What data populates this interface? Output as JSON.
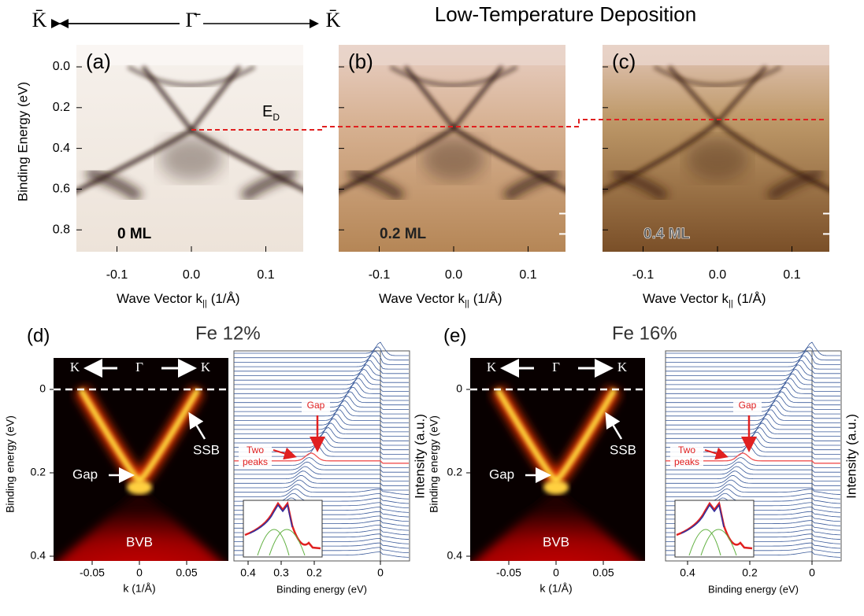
{
  "header": {
    "k_left": "K̄",
    "gamma": "Γ̄",
    "k_right": "K̄",
    "title": "Low-Temperature Deposition"
  },
  "top": {
    "y_label": "Binding Energy (eV)",
    "y_ticks": [
      "0.0",
      "0.2",
      "0.4",
      "0.6",
      "0.8"
    ],
    "x_ticks": [
      "-0.1",
      "0.0",
      "0.1"
    ],
    "x_label": "Wave Vector k",
    "x_label_sub": "||",
    "x_label_unit": "(1/Å)",
    "dirac_label": "E",
    "dirac_sub": "D",
    "panels": [
      {
        "label": "(a)",
        "coverage": "0 ML"
      },
      {
        "label": "(b)",
        "coverage": "0.2 ML"
      },
      {
        "label": "(c)",
        "coverage": "0.4 ML"
      }
    ]
  },
  "bottom": [
    {
      "label": "(d)",
      "title": "Fe 12%",
      "k_left": "K",
      "gamma": "Γ",
      "k_right": "K",
      "y_label": "Binding energy (eV)",
      "y_ticks": [
        "0",
        "0.2",
        "0.4"
      ],
      "x_ticks": [
        "-0.05",
        "0",
        "0.05"
      ],
      "x_label": "k (1/Å)",
      "ssb": "SSB",
      "gap": "Gap",
      "bvb": "BVB",
      "edc_x_ticks": [
        "0.4",
        "0.3",
        "0.2",
        "0"
      ],
      "edc_x_label": "Binding energy (eV)",
      "edc_y_label": "Intensity (a.u.)",
      "edc_gap": "Gap",
      "two_peaks": [
        "Two",
        "peaks"
      ]
    },
    {
      "label": "(e)",
      "title": "Fe 16%",
      "k_left": "K",
      "gamma": "Γ",
      "k_right": "K",
      "y_label": "Binding energy (eV)",
      "y_ticks": [
        "0",
        "0.2",
        "0.4"
      ],
      "x_ticks": [
        "-0.05",
        "0",
        "0.05"
      ],
      "x_label": "k (1/Å)",
      "ssb": "SSB",
      "gap": "Gap",
      "bvb": "BVB",
      "edc_x_ticks": [
        "0.4",
        "0.2",
        "0"
      ],
      "edc_x_label": "Binding energy (eV)",
      "edc_y_label": "Intensity (a.u.)",
      "edc_gap": "Gap",
      "two_peaks": [
        "Two",
        "peaks"
      ]
    }
  ]
}
